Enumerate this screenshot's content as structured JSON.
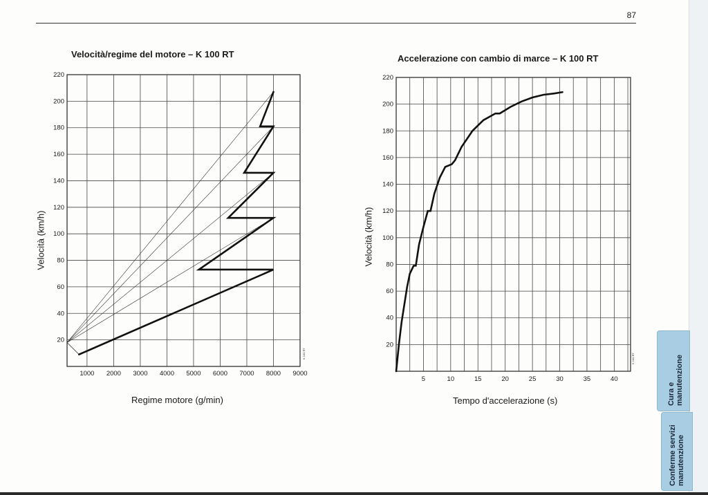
{
  "page_number": "87",
  "side_tabs": {
    "care": [
      "Cura e",
      "manutenzione"
    ],
    "confirm": [
      "Conferme servizi",
      "manutenzione"
    ]
  },
  "chart_data": [
    {
      "type": "line",
      "title": "Velocità/regime del motore – K 100 RT",
      "xlabel": "Regime motore (g/min)",
      "ylabel": "Velocità (km/h)",
      "xlim": [
        250,
        9000
      ],
      "ylim": [
        0,
        220
      ],
      "x_ticks": [
        1000,
        2000,
        3000,
        4000,
        5000,
        6000,
        7000,
        8000,
        9000
      ],
      "y_ticks": [
        20,
        40,
        60,
        80,
        100,
        120,
        140,
        160,
        180,
        200,
        220
      ],
      "grid": true,
      "code_label": "K 100 RT",
      "gear_lines": [
        {
          "x": [
            250,
            8000
          ],
          "y": [
            18,
            207
          ]
        },
        {
          "x": [
            250,
            8000
          ],
          "y": [
            18,
            181
          ]
        },
        {
          "x": [
            250,
            8000
          ],
          "y": [
            18,
            146
          ]
        },
        {
          "x": [
            250,
            8000
          ],
          "y": [
            18,
            112
          ]
        }
      ],
      "series": [
        {
          "x": [
            700,
            8000,
            5200,
            8000,
            6300,
            8000,
            6900,
            8000,
            7500,
            8000
          ],
          "y": [
            9,
            73,
            73,
            112,
            112,
            146,
            146,
            181,
            181,
            207
          ]
        }
      ]
    },
    {
      "type": "line",
      "title": "Accelerazione con cambio di marce – K 100 RT",
      "xlabel": "Tempo d'accelerazione (s)",
      "ylabel": "Velocità (km/h)",
      "xlim": [
        0,
        43
      ],
      "ylim": [
        0,
        220
      ],
      "x_ticks": [
        5,
        10,
        15,
        20,
        25,
        30,
        35,
        40
      ],
      "y_ticks": [
        20,
        40,
        60,
        80,
        100,
        120,
        140,
        160,
        180,
        200,
        220
      ],
      "grid": true,
      "code_label": "K 100 RT",
      "series": [
        {
          "x": [
            0,
            0.5,
            1,
            1.5,
            2,
            2.5,
            3.2,
            3.6,
            4.2,
            5,
            5.8,
            6.3,
            7,
            8,
            9,
            10.2,
            10.8,
            12,
            14,
            16,
            18.2,
            19,
            21,
            23,
            25,
            27,
            29,
            30.5
          ],
          "y": [
            0,
            20,
            37,
            50,
            63,
            73,
            79,
            79,
            95,
            108,
            120,
            120,
            133,
            145,
            153,
            155,
            158,
            168,
            180,
            188,
            193,
            193,
            198,
            202,
            205,
            207,
            208,
            209
          ]
        }
      ]
    }
  ]
}
